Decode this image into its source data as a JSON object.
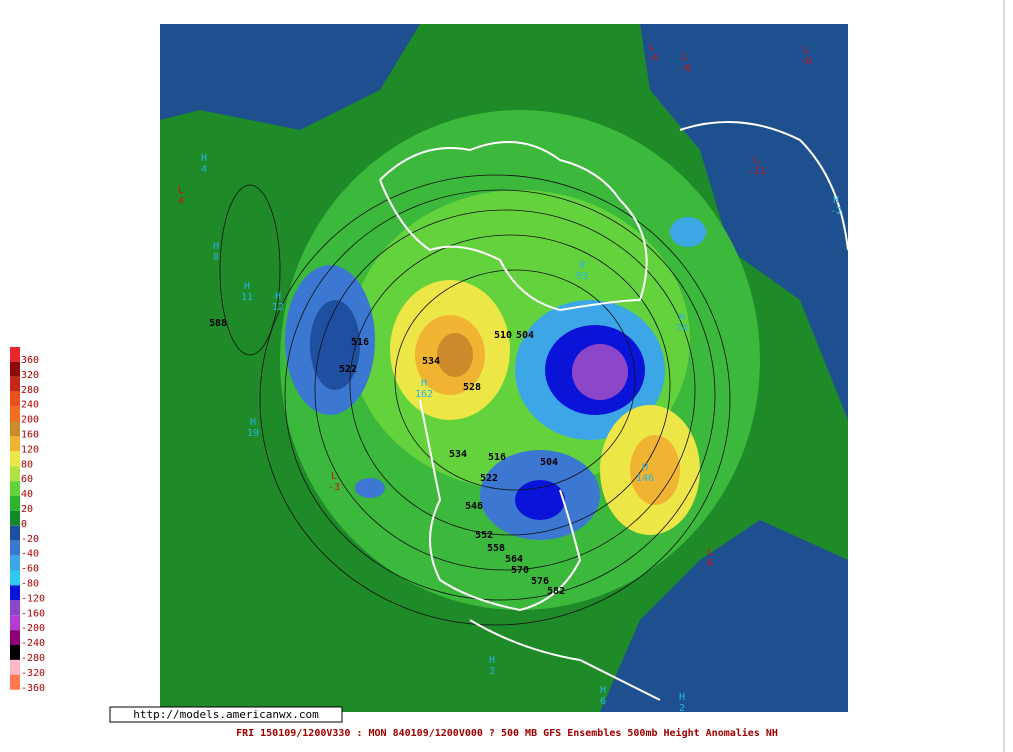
{
  "legend": {
    "values": [
      360,
      320,
      280,
      240,
      200,
      160,
      120,
      80,
      60,
      40,
      20,
      0,
      -20,
      -40,
      -60,
      -80,
      -120,
      -160,
      -200,
      -240,
      -280,
      -320,
      -360
    ],
    "colors": [
      "#e8262a",
      "#8b0a0a",
      "#c8281a",
      "#e8501e",
      "#f06e1e",
      "#cc8a2a",
      "#f0b432",
      "#ece646",
      "#b4e246",
      "#64d23c",
      "#2cb42c",
      "#148a28",
      "#1e4fa0",
      "#3c78d2",
      "#3ca6e6",
      "#2ec8f0",
      "#0a14d8",
      "#8c46c8",
      "#b43cd2",
      "#8c0078",
      "#000000",
      "#ffb8c8",
      "#ff7850"
    ]
  },
  "centers": [
    {
      "symbol": "L",
      "value": -4
    },
    {
      "symbol": "L",
      "value": -6
    },
    {
      "symbol": "L",
      "value": -6
    },
    {
      "symbol": "H",
      "value": 4
    },
    {
      "symbol": "H",
      "value": 8
    },
    {
      "symbol": "H",
      "value": 11
    },
    {
      "symbol": "H",
      "value": 12
    },
    {
      "symbol": "H",
      "value": 19
    },
    {
      "symbol": "L",
      "value": -11
    },
    {
      "symbol": "H",
      "value": -2
    },
    {
      "symbol": "L",
      "value": 6
    },
    {
      "symbol": "H",
      "value": 146
    },
    {
      "symbol": "H",
      "value": 162
    },
    {
      "symbol": "H",
      "value": 93
    },
    {
      "symbol": "H",
      "value": 74
    },
    {
      "symbol": "H",
      "value": 6
    },
    {
      "symbol": "H",
      "value": 2
    },
    {
      "symbol": "H",
      "value": 3
    },
    {
      "symbol": "L",
      "value": 4
    },
    {
      "symbol": "L",
      "value": -3
    }
  ],
  "contour_labels": [
    588,
    516,
    522,
    534,
    528,
    510,
    504,
    534,
    516,
    522,
    504,
    546,
    552,
    558,
    564,
    570,
    576,
    582
  ],
  "url": "http://models.americanwx.com",
  "caption": "FRI 150109/1200V330 : MON 840109/1200V000  ? 500 MB GFS Ensembles 500mb Height Anomalies NH"
}
